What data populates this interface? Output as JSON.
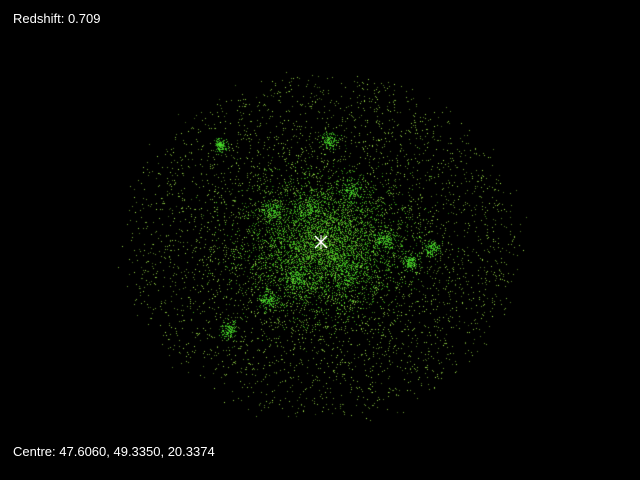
{
  "hud": {
    "redshift_label": "Redshift:",
    "redshift_value": "0.709",
    "centre_label": "Centre:",
    "centre_value": "47.6060, 49.3350, 20.3374"
  },
  "scene": {
    "particle_color": "#b4f25a",
    "core_color": "#3cc81e",
    "background_color": "#000000",
    "crosshair_color": "#ffffff"
  },
  "icons": {
    "crosshair": "crosshair-icon"
  }
}
